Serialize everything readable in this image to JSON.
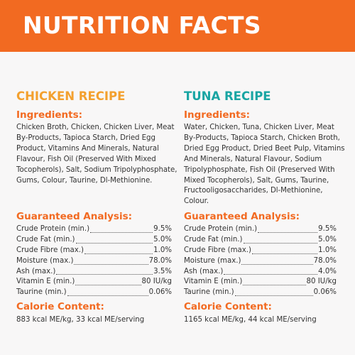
{
  "banner": {
    "title": "NUTRITION FACTS",
    "color": "#f26a21"
  },
  "chicken": {
    "title": "CHICKEN RECIPE",
    "title_color": "#f3a02e",
    "ingredients_heading": "Ingredients:",
    "ingredients": "Chicken Broth, Chicken, Chicken Liver, Meat By-Products, Tapioca Starch, Dried Egg Product, Vitamins And Minerals, Natural Flavour, Fish Oil (Preserved With Mixed Tocopherols), Salt, Sodium Tripolyphosphate, Gums, Colour, Taurine, Dl-Methionine.",
    "analysis_heading": "Guaranteed Analysis:",
    "analysis": [
      {
        "label": "Crude Protein (min.)",
        "value": "9.5%"
      },
      {
        "label": "Crude Fat (min.)",
        "value": "5.0%"
      },
      {
        "label": "Crude Fibre (max.)",
        "value": "1.0%"
      },
      {
        "label": "Moisture (max.)",
        "value": "78.0%"
      },
      {
        "label": "Ash (max.)",
        "value": "3.5%"
      },
      {
        "label": "Vitamin E (min.)",
        "value": "80 IU/kg"
      },
      {
        "label": "Taurine (min.)",
        "value": "0.06%"
      }
    ],
    "calorie_heading": "Calorie Content:",
    "calorie": "883 kcal ME/kg, 33 kcal ME/serving"
  },
  "tuna": {
    "title": "TUNA RECIPE",
    "title_color": "#19a5a3",
    "ingredients_heading": "Ingredients:",
    "ingredients": "Water, Chicken, Tuna, Chicken Liver, Meat By-Products, Tapioca Starch, Chicken Broth, Dried Egg Product, Dried Beet Pulp, Vitamins And Minerals, Natural Flavour, Sodium Tripolyphosphate, Fish Oil (Preserved With Mixed Tocopherols), Salt, Gums, Taurine, Fructooligosaccharides, Dl-Methionine, Colour.",
    "analysis_heading": "Guaranteed Analysis:",
    "analysis": [
      {
        "label": "Crude Protein (min.)",
        "value": "9.5%"
      },
      {
        "label": "Crude Fat (min.)",
        "value": "5.0%"
      },
      {
        "label": "Crude Fibre (max.)",
        "value": "1.0%"
      },
      {
        "label": "Moisture (max.)",
        "value": "78.0%"
      },
      {
        "label": "Ash (max.)",
        "value": "4.0%"
      },
      {
        "label": "Vitamin E (min.)",
        "value": "80 IU/kg"
      },
      {
        "label": "Taurine (min.)",
        "value": "0.06%"
      }
    ],
    "calorie_heading": "Calorie Content:",
    "calorie": "1165 kcal ME/kg, 44 kcal ME/serving"
  }
}
